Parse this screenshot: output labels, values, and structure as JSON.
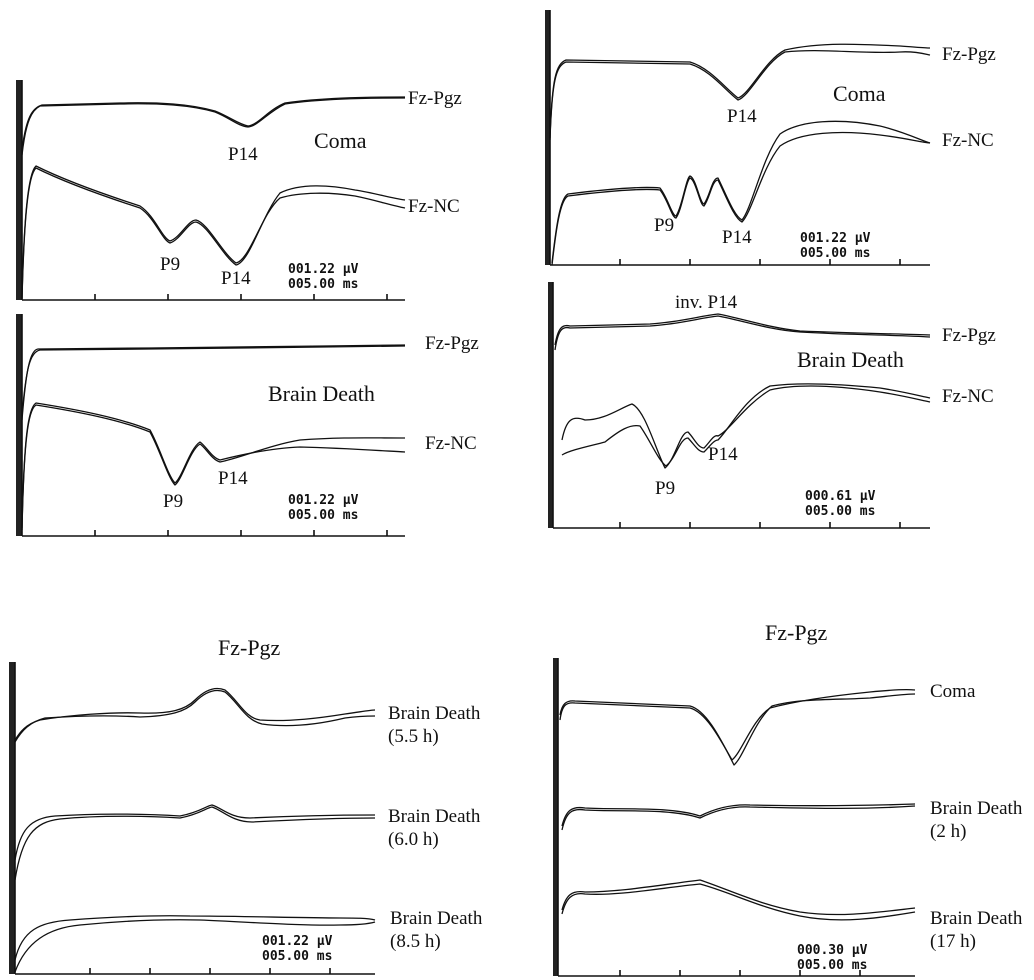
{
  "chart_data": [
    {
      "type": "line",
      "panel_id": "top-left-a",
      "title": "Coma",
      "series": [
        {
          "name": "Fz-Pgz",
          "peaks": [
            {
              "label": "P14"
            }
          ]
        },
        {
          "name": "Fz-NC",
          "peaks": [
            {
              "label": "P9"
            },
            {
              "label": "P14"
            }
          ]
        }
      ]
    },
    {
      "type": "line",
      "panel_id": "top-left-b",
      "title": "Brain Death",
      "series": [
        {
          "name": "Fz-Pgz",
          "peaks": []
        },
        {
          "name": "Fz-NC",
          "peaks": [
            {
              "label": "P9"
            },
            {
              "label": "P14"
            }
          ]
        }
      ],
      "scale": {
        "amplitude": "001.22 µV",
        "time": "005.00 ms"
      }
    },
    {
      "type": "line",
      "panel_id": "top-right-a",
      "title": "Coma",
      "series": [
        {
          "name": "Fz-Pgz",
          "peaks": [
            {
              "label": "P14"
            }
          ]
        },
        {
          "name": "Fz-NC",
          "peaks": [
            {
              "label": "P9"
            },
            {
              "label": "P14"
            }
          ]
        }
      ],
      "scale": {
        "amplitude": "001.22 µV",
        "time": "005.00 ms"
      }
    },
    {
      "type": "line",
      "panel_id": "top-right-b",
      "title": "Brain Death",
      "series": [
        {
          "name": "Fz-Pgz",
          "peaks": [
            {
              "label": "inv. P14"
            }
          ]
        },
        {
          "name": "Fz-NC",
          "peaks": [
            {
              "label": "P9"
            },
            {
              "label": "P14"
            }
          ]
        }
      ],
      "scale": {
        "amplitude": "000.61 µV",
        "time": "005.00 ms"
      }
    },
    {
      "type": "line",
      "panel_id": "bottom-left",
      "title": "Fz-Pgz",
      "series": [
        {
          "name": "Brain Death",
          "time": "(5.5 h)"
        },
        {
          "name": "Brain Death",
          "time": "(6.0 h)"
        },
        {
          "name": "Brain Death",
          "time": "(8.5 h)"
        }
      ],
      "scale": {
        "amplitude": "001.22 µV",
        "time": "005.00 ms"
      }
    },
    {
      "type": "line",
      "panel_id": "bottom-right",
      "title": "Fz-Pgz",
      "series": [
        {
          "name": "Coma",
          "time": ""
        },
        {
          "name": "Brain Death",
          "time": "(2 h)"
        },
        {
          "name": "Brain Death",
          "time": "(17 h)"
        }
      ],
      "scale": {
        "amplitude": "000.30 µV",
        "time": "005.00 ms"
      }
    }
  ],
  "top_left_a_scale": {
    "amplitude": "001.22 µV",
    "time": "005.00 ms"
  }
}
